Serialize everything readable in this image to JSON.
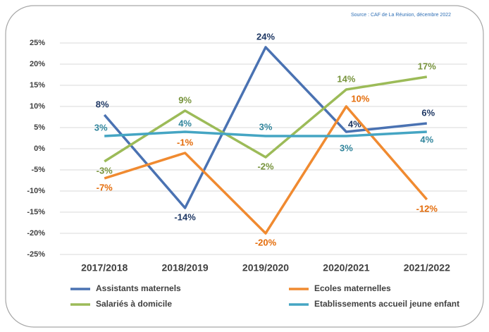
{
  "chart_data": {
    "type": "line",
    "source": "Source : CAF de La Réunion, décembre 2022",
    "categories": [
      "2017/2018",
      "2018/2019",
      "2019/2020",
      "2020/2021",
      "2021/2022"
    ],
    "series": [
      {
        "name": "Assistants maternels",
        "color": "#4a72b2",
        "values": [
          8,
          -14,
          24,
          4,
          6
        ],
        "value_labels": [
          "8%",
          "-14%",
          "24%",
          "4%",
          "6%"
        ]
      },
      {
        "name": "Ecoles maternelles",
        "color": "#f08a30",
        "values": [
          -7,
          -1,
          -20,
          10,
          -12
        ],
        "value_labels": [
          "-7%",
          "-1%",
          "-20%",
          "10%",
          "-12%"
        ]
      },
      {
        "name": "Salariés à domicile",
        "color": "#9cbb58",
        "values": [
          -3,
          9,
          -2,
          14,
          17
        ],
        "value_labels": [
          "-3%",
          "9%",
          "-2%",
          "14%",
          "17%"
        ]
      },
      {
        "name": "Etablissements accueil jeune enfant",
        "color": "#45a5c3",
        "values": [
          3,
          4,
          3,
          3,
          4
        ],
        "value_labels": [
          "3%",
          "4%",
          "3%",
          "3%",
          "4%"
        ]
      }
    ],
    "ylim": [
      -25,
      25
    ],
    "yticks": [
      {
        "value": -25,
        "label": "-25%"
      },
      {
        "value": -20,
        "label": "-20%"
      },
      {
        "value": -15,
        "label": "-15%"
      },
      {
        "value": -10,
        "label": "-10%"
      },
      {
        "value": -5,
        "label": "-5%"
      },
      {
        "value": 0,
        "label": "0%"
      },
      {
        "value": 5,
        "label": "5%"
      },
      {
        "value": 10,
        "label": "10%"
      },
      {
        "value": 15,
        "label": "15%"
      },
      {
        "value": 20,
        "label": "20%"
      },
      {
        "value": 25,
        "label": "25%"
      }
    ],
    "grid": true
  }
}
